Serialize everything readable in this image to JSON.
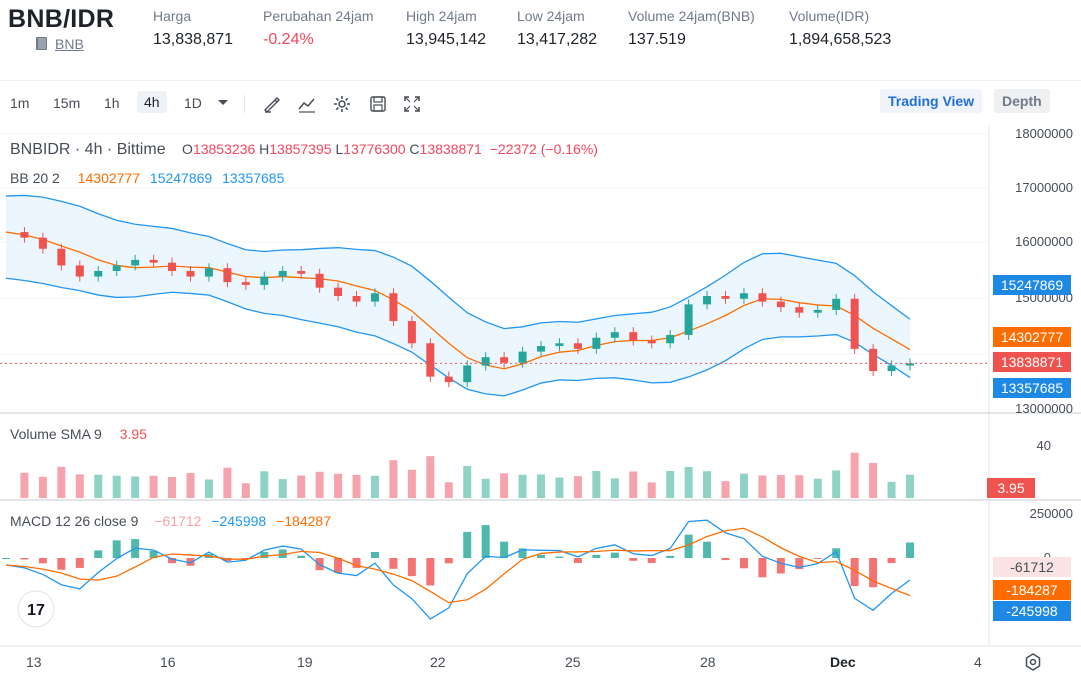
{
  "header": {
    "pair": "BNB/IDR",
    "base_asset": "BNB",
    "stats": [
      {
        "label": "Harga",
        "value": "13,838,871",
        "negative": false
      },
      {
        "label": "Perubahan 24jam",
        "value": "-0.24%",
        "negative": true
      },
      {
        "label": "High 24jam",
        "value": "13,945,142",
        "negative": false
      },
      {
        "label": "Low 24jam",
        "value": "13,417,282",
        "negative": false
      },
      {
        "label": "Volume 24jam(BNB)",
        "value": "137.519",
        "negative": false
      },
      {
        "label": "Volume(IDR)",
        "value": "1,894,658,523",
        "negative": false
      }
    ]
  },
  "toolbar": {
    "intervals": [
      "1m",
      "15m",
      "1h",
      "4h",
      "1D"
    ],
    "active_interval": "4h",
    "tool_icons": [
      "draw-tool-icon",
      "indicator-icon",
      "settings-gear-icon",
      "save-icon",
      "fullscreen-icon"
    ],
    "views": {
      "trading": "Trading View",
      "depth": "Depth"
    }
  },
  "legend": {
    "symbol": "BNBIDR · 4h · Bittime",
    "o_label": "O",
    "o": "13853236",
    "h_label": "H",
    "h": "13857395",
    "l_label": "L",
    "l": "13776300",
    "c_label": "C",
    "c": "13838871",
    "change": "−22372 (−0.16%)",
    "bb_label": "BB 20 2",
    "bb_basis": "14302777",
    "bb_upper": "15247869",
    "bb_lower": "13357685",
    "vol_label": "Volume SMA 9",
    "vol_value": "3.95",
    "macd_label": "MACD 12 26 close 9",
    "macd_hist": "−61712",
    "macd_line": "−245998",
    "macd_signal": "−184287"
  },
  "price_axis": {
    "ticks": [
      "18000000",
      "17000000",
      "16000000",
      "15000000",
      "14000000",
      "13000000"
    ],
    "tags": {
      "upper": "15247869",
      "basis": "14302777",
      "last": "13838871",
      "lower": "13357685"
    }
  },
  "volume_axis": {
    "tick": "40",
    "tag": "3.95"
  },
  "macd_axis": {
    "ticks": [
      "250000",
      "0"
    ],
    "tags": {
      "hist": "-61712",
      "signal": "-184287",
      "macd": "-245998"
    }
  },
  "dates": [
    "13",
    "16",
    "19",
    "22",
    "25",
    "28",
    "Dec",
    "4"
  ],
  "colors": {
    "up": "#26a69a",
    "down": "#ef5350",
    "bb_basis": "#ff6d00",
    "bb_band": "#2196f3",
    "accent_blue": "#1e6fd9"
  },
  "chart_data": {
    "type": "candlestick",
    "interval": "4h",
    "ylim": [
      13000000,
      18000000
    ],
    "ohlc_last": {
      "o": 13853236,
      "h": 13857395,
      "l": 13776300,
      "c": 13838871
    },
    "bollinger": {
      "basis": 14302777,
      "upper": 15247869,
      "lower": 13357685
    },
    "volume_sma9": 3.95,
    "macd": {
      "histogram": -61712,
      "macd": -245998,
      "signal": -184287
    },
    "close_path": [
      16200000,
      16100000,
      15900000,
      15600000,
      15400000,
      15500000,
      15600000,
      15700000,
      15650000,
      15500000,
      15400000,
      15550000,
      15300000,
      15250000,
      15400000,
      15500000,
      15450000,
      15200000,
      15050000,
      14950000,
      15100000,
      14600000,
      14200000,
      13600000,
      13500000,
      13800000,
      13950000,
      13850000,
      14050000,
      14150000,
      14200000,
      14100000,
      14300000,
      14400000,
      14250000,
      14200000,
      14350000,
      14900000,
      15050000,
      15000000,
      15100000,
      14950000,
      14850000,
      14750000,
      14800000,
      15000000,
      14100000,
      13700000,
      13800000,
      13838871
    ]
  }
}
